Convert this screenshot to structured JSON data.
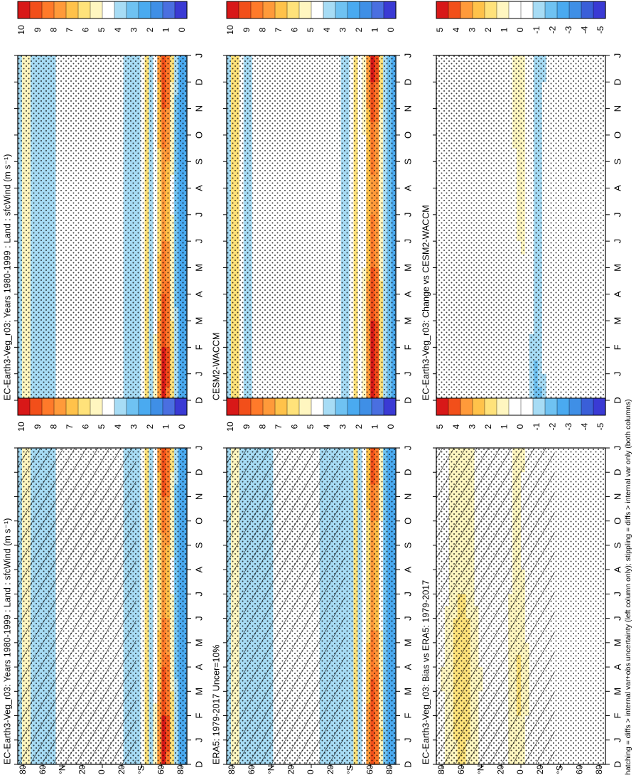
{
  "figure": {
    "footnote": "hatching = diffs > internal var+obs uncertainty (left column only); stippling = diffs > internal var only (both columns)"
  },
  "colors": {
    "abs_scale": [
      "#3a3ad4",
      "#4a6fe0",
      "#3f8fe6",
      "#4aaaf0",
      "#6fc2f2",
      "#a7dcf5",
      "#ffffff",
      "#fff6c0",
      "#ffe27a",
      "#ffc24a",
      "#ff9a3a",
      "#ff7a2a",
      "#f24f1a",
      "#d81818"
    ],
    "diff_scale": [
      "#3a3ad4",
      "#3a5fd8",
      "#3f8fe6",
      "#4aaaf0",
      "#6fc2f2",
      "#a7dcf5",
      "#ffffff",
      "#ffffff",
      "#fff6c0",
      "#ffe27a",
      "#ffc24a",
      "#ff9a3a",
      "#f24f1a",
      "#d81818"
    ],
    "hatch": "#000000"
  },
  "chart_data": [
    {
      "type": "heatmap",
      "id": "ec-earth-left",
      "title": "EC-Earth3-Veg_r03: Years 1980-1999 : Land : sfcWind (m s⁻¹)",
      "x_label": "",
      "months": [
        "D",
        "J",
        "F",
        "M",
        "A",
        "M",
        "J",
        "J",
        "A",
        "S",
        "O",
        "N",
        "D",
        "J"
      ],
      "lat_ticks": [
        "80",
        "60",
        "°N",
        "20",
        "0",
        "20",
        "°S",
        "60",
        "80"
      ],
      "lat_values": [
        80,
        60,
        40,
        20,
        0,
        -20,
        -40,
        -60,
        -80
      ],
      "colorbar_ticks": [
        "10",
        "9",
        "8",
        "7",
        "6",
        "5",
        "4",
        "3",
        "2",
        "1",
        "0"
      ],
      "value_range": [
        0,
        10
      ],
      "hatching": true,
      "stippling": true
    },
    {
      "type": "heatmap",
      "id": "ec-earth-right",
      "title": "EC-Earth3-Veg_r03: Years 1980-1999 : Land : sfcWind (m s⁻¹)",
      "months": [
        "D",
        "J",
        "F",
        "M",
        "A",
        "M",
        "J",
        "J",
        "A",
        "S",
        "O",
        "N",
        "D",
        "J"
      ],
      "lat_ticks": [
        "80",
        "60",
        "°N",
        "20",
        "0",
        "20",
        "°S",
        "60",
        "80"
      ],
      "colorbar_ticks": [
        "10",
        "9",
        "8",
        "7",
        "6",
        "5",
        "4",
        "3",
        "2",
        "1",
        "0"
      ],
      "value_range": [
        0,
        10
      ],
      "hatching": false,
      "stippling": true
    },
    {
      "type": "heatmap",
      "id": "era5",
      "title": "ERA5: 1979-2017 Uncer=10%",
      "months": [
        "D",
        "J",
        "F",
        "M",
        "A",
        "M",
        "J",
        "J",
        "A",
        "S",
        "O",
        "N",
        "D",
        "J"
      ],
      "lat_ticks": [
        "80",
        "60",
        "°N",
        "20",
        "0",
        "20",
        "°S",
        "60",
        "80"
      ],
      "colorbar_ticks": [
        "10",
        "9",
        "8",
        "7",
        "6",
        "5",
        "4",
        "3",
        "2",
        "1",
        "0"
      ],
      "value_range": [
        0,
        10
      ],
      "hatching": true,
      "stippling": true
    },
    {
      "type": "heatmap",
      "id": "cesm2",
      "title": "CESM2-WACCM",
      "months": [
        "D",
        "J",
        "F",
        "M",
        "A",
        "M",
        "J",
        "J",
        "A",
        "S",
        "O",
        "N",
        "D",
        "J"
      ],
      "lat_ticks": [
        "80",
        "60",
        "°N",
        "20",
        "0",
        "20",
        "°S",
        "60",
        "80"
      ],
      "colorbar_ticks": [
        "10",
        "9",
        "8",
        "7",
        "6",
        "5",
        "4",
        "3",
        "2",
        "1",
        "0"
      ],
      "value_range": [
        0,
        10
      ],
      "hatching": false,
      "stippling": true
    },
    {
      "type": "heatmap",
      "id": "bias",
      "title": "EC-Earth3-Veg_r03: Bias vs ERA5: 1979-2017",
      "months": [
        "D",
        "J",
        "F",
        "M",
        "A",
        "M",
        "J",
        "J",
        "A",
        "S",
        "O",
        "N",
        "D",
        "J"
      ],
      "lat_ticks": [
        "80",
        "60",
        "°N",
        "20",
        "0",
        "20",
        "°S",
        "60",
        "80"
      ],
      "colorbar_ticks": [
        "5",
        "4",
        "3",
        "2",
        "1",
        "0",
        "-1",
        "-2",
        "-3",
        "-4",
        "-5"
      ],
      "value_range": [
        -5,
        5
      ],
      "hatching": true,
      "stippling": true
    },
    {
      "type": "heatmap",
      "id": "change",
      "title": "EC-Earth3-Veg_r03: Change vs CESM2-WACCM",
      "months": [
        "D",
        "J",
        "F",
        "M",
        "A",
        "M",
        "J",
        "J",
        "A",
        "S",
        "O",
        "N",
        "D",
        "J"
      ],
      "lat_ticks": [
        "80",
        "60",
        "°N",
        "20",
        "0",
        "20",
        "°S",
        "60",
        "80"
      ],
      "colorbar_ticks": [
        "5",
        "4",
        "3",
        "2",
        "1",
        "0",
        "-1",
        "-2",
        "-3",
        "-4",
        "-5"
      ],
      "value_range": [
        -5,
        5
      ],
      "hatching": false,
      "stippling": true
    }
  ]
}
